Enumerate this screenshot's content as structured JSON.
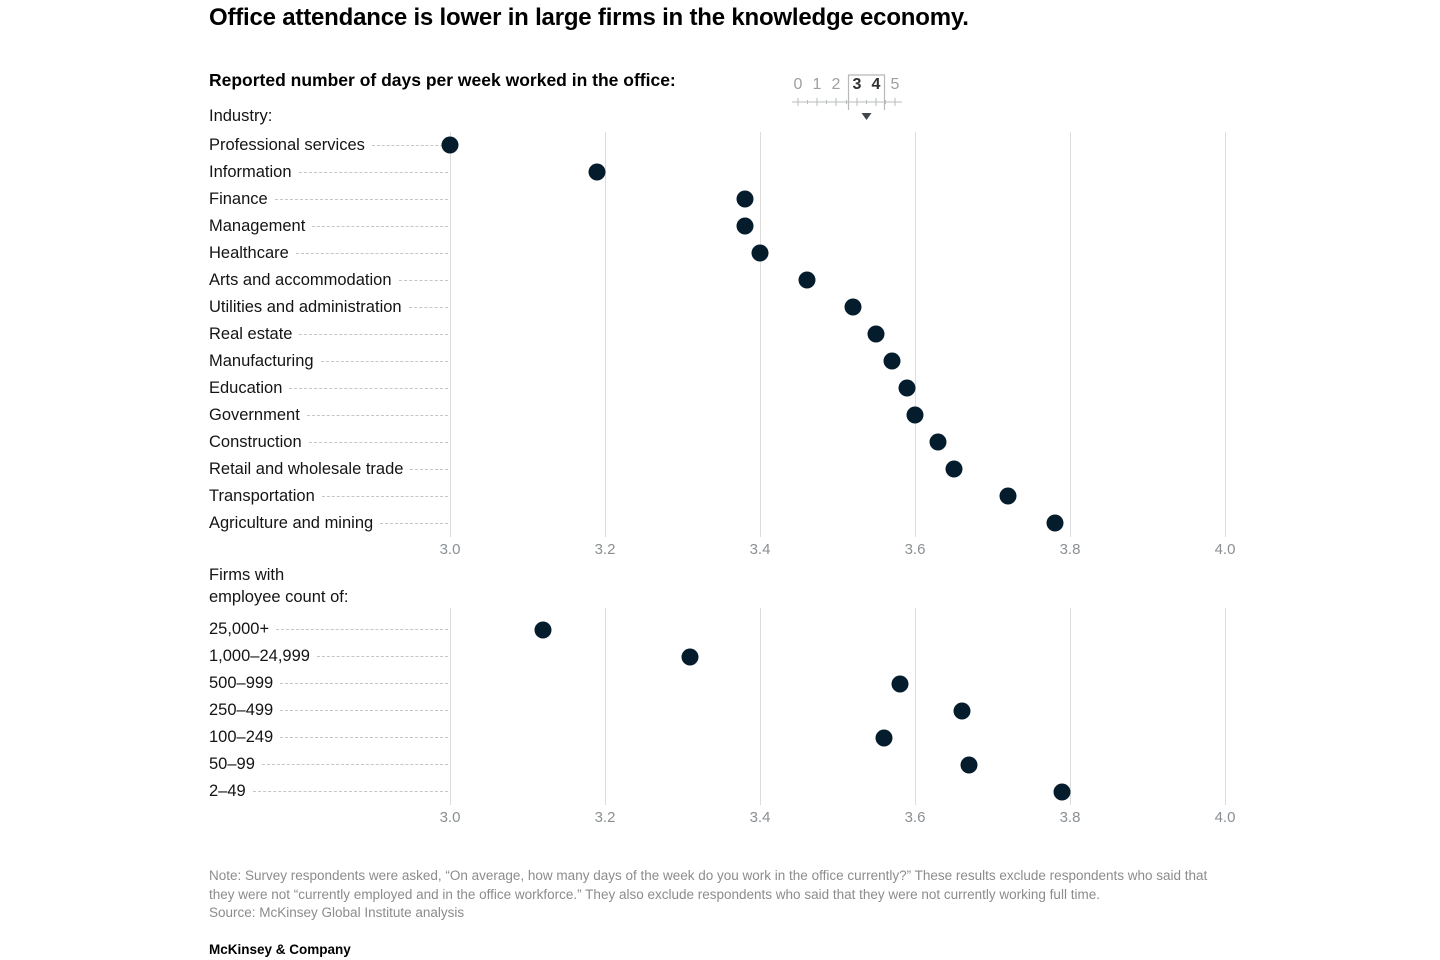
{
  "header": {
    "title": "Office attendance is lower in large firms in the knowledge economy.",
    "subtitle": "Reported number of days per week worked in the office:",
    "scale_legend": {
      "numbers": [
        "0",
        "1",
        "2",
        "3",
        "4",
        "5"
      ],
      "highlighted_range": [
        "3",
        "4"
      ]
    }
  },
  "chart_data": [
    {
      "type": "scatter",
      "title": "Industry:",
      "categories": [
        "Professional services",
        "Information",
        "Finance",
        "Management",
        "Healthcare",
        "Arts and accommodation",
        "Utilities and administration",
        "Real estate",
        "Manufacturing",
        "Education",
        "Government",
        "Construction",
        "Retail and wholesale trade",
        "Transportation",
        "Agriculture and mining"
      ],
      "values": [
        3.0,
        3.19,
        3.38,
        3.38,
        3.4,
        3.46,
        3.52,
        3.55,
        3.57,
        3.59,
        3.6,
        3.63,
        3.65,
        3.72,
        3.78
      ],
      "xlim": [
        3.0,
        4.0
      ],
      "xticks": [
        3.0,
        3.2,
        3.4,
        3.6,
        3.8,
        4.0
      ],
      "xtick_labels": [
        "3.0",
        "3.2",
        "3.4",
        "3.6",
        "3.8",
        "4.0"
      ],
      "dot_color": "#051C2C",
      "grid": true,
      "legend_position": "none"
    },
    {
      "type": "scatter",
      "title": "Firms with employee count of:",
      "title_lines": [
        "Firms with",
        "employee count of:"
      ],
      "categories": [
        "25,000+",
        "1,000–24,999",
        "500–999",
        "250–499",
        "100–249",
        "50–99",
        "2–49"
      ],
      "values": [
        3.12,
        3.31,
        3.58,
        3.66,
        3.56,
        3.67,
        3.79
      ],
      "xlim": [
        3.0,
        4.0
      ],
      "xticks": [
        3.0,
        3.2,
        3.4,
        3.6,
        3.8,
        4.0
      ],
      "xtick_labels": [
        "3.0",
        "3.2",
        "3.4",
        "3.6",
        "3.8",
        "4.0"
      ],
      "dot_color": "#051C2C",
      "grid": true,
      "legend_position": "none"
    }
  ],
  "footnote": {
    "note": "Note: Survey respondents were asked, “On average, how many days of the week do you work in the office currently?” These results exclude respondents who said that they were not “currently employed and in the office workforce.” They also exclude respondents who said that they were not currently working full time.",
    "source": "Source: McKinsey Global Institute analysis"
  },
  "footer": {
    "brand": "McKinsey & Company"
  },
  "colors": {
    "dot": "#051C2C",
    "gridline": "#DCDCDC",
    "leader_dash": "#C6C6C6",
    "axis_text": "#8A8F93",
    "note_text": "#8C8C8C"
  }
}
